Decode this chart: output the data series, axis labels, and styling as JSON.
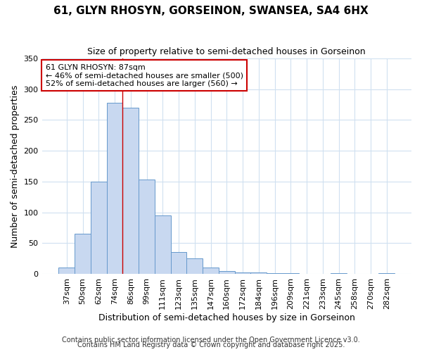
{
  "title1": "61, GLYN RHOSYN, GORSEINON, SWANSEA, SA4 6HX",
  "title2": "Size of property relative to semi-detached houses in Gorseinon",
  "xlabel": "Distribution of semi-detached houses by size in Gorseinon",
  "ylabel": "Number of semi-detached properties",
  "categories": [
    "37sqm",
    "50sqm",
    "62sqm",
    "74sqm",
    "86sqm",
    "99sqm",
    "111sqm",
    "123sqm",
    "135sqm",
    "147sqm",
    "160sqm",
    "172sqm",
    "184sqm",
    "196sqm",
    "209sqm",
    "221sqm",
    "233sqm",
    "245sqm",
    "258sqm",
    "270sqm",
    "282sqm"
  ],
  "values": [
    10,
    65,
    150,
    278,
    270,
    153,
    95,
    35,
    25,
    10,
    5,
    2,
    2,
    1,
    1,
    0,
    0,
    1,
    0,
    0,
    1
  ],
  "bar_color": "#c8d8f0",
  "bar_edge_color": "#6699cc",
  "plot_bg_color": "#ffffff",
  "fig_bg_color": "#ffffff",
  "red_line_x": 3.5,
  "annotation_line1": "61 GLYN RHOSYN: 87sqm",
  "annotation_line2": "← 46% of semi-detached houses are smaller (500)",
  "annotation_line3": "52% of semi-detached houses are larger (560) →",
  "annotation_box_color": "white",
  "annotation_box_edge": "#cc0000",
  "footer1": "Contains HM Land Registry data © Crown copyright and database right 2025.",
  "footer2": "Contains public sector information licensed under the Open Government Licence v3.0.",
  "ylim": [
    0,
    350
  ],
  "yticks": [
    0,
    50,
    100,
    150,
    200,
    250,
    300,
    350
  ],
  "title_fontsize": 11,
  "subtitle_fontsize": 9,
  "axis_label_fontsize": 9,
  "tick_fontsize": 8,
  "annotation_fontsize": 8,
  "footer_fontsize": 7
}
